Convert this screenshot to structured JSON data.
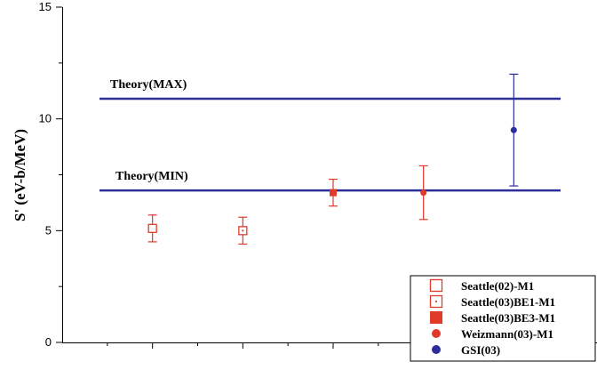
{
  "chart_data": {
    "type": "scatter",
    "title": "",
    "xlabel": "",
    "ylabel": "S' (eV-b/MeV)",
    "ylim": [
      0,
      15
    ],
    "xlim": [
      0,
      6
    ],
    "y_ticks": [
      0,
      5,
      10,
      15
    ],
    "y_tick_labels": [
      "0",
      "5",
      "10",
      "15"
    ],
    "x_tick_values": [
      0.5,
      1,
      1.5,
      2,
      2.5,
      3,
      3.5,
      4,
      4.5,
      5,
      5.5
    ],
    "x_tick_labels_visible": false,
    "grid": false,
    "legend_position": "bottom-right",
    "reference_lines": [
      {
        "label": "Theory(MAX)",
        "y": 10.9,
        "color": "#2e2e9a"
      },
      {
        "label": "Theory(MIN)",
        "y": 6.8,
        "color": "#2e2e9a"
      }
    ],
    "series": [
      {
        "name": "Seattle(02)-M1",
        "marker": "open-square",
        "color": "#e03a2b",
        "x": [
          1
        ],
        "y": [
          5.1
        ],
        "err_low": [
          4.5
        ],
        "err_high": [
          5.7
        ]
      },
      {
        "name": "Seattle(03)BE1-M1",
        "marker": "dotted-square",
        "color": "#e03a2b",
        "x": [
          2
        ],
        "y": [
          5.0
        ],
        "err_low": [
          4.4
        ],
        "err_high": [
          5.6
        ]
      },
      {
        "name": "Seattle(03)BE3-M1",
        "marker": "filled-square",
        "color": "#e03a2b",
        "x": [
          3
        ],
        "y": [
          6.7
        ],
        "err_low": [
          6.1
        ],
        "err_high": [
          7.3
        ]
      },
      {
        "name": "Weizmann(03)-M1",
        "marker": "filled-circle",
        "color": "#e03a2b",
        "x": [
          4
        ],
        "y": [
          6.7
        ],
        "err_low": [
          5.5
        ],
        "err_high": [
          7.9
        ]
      },
      {
        "name": "GSI(03)",
        "marker": "filled-circle",
        "color": "#2e2e9a",
        "x": [
          5
        ],
        "y": [
          9.5
        ],
        "err_low": [
          7.0
        ],
        "err_high": [
          12.0
        ]
      }
    ]
  }
}
